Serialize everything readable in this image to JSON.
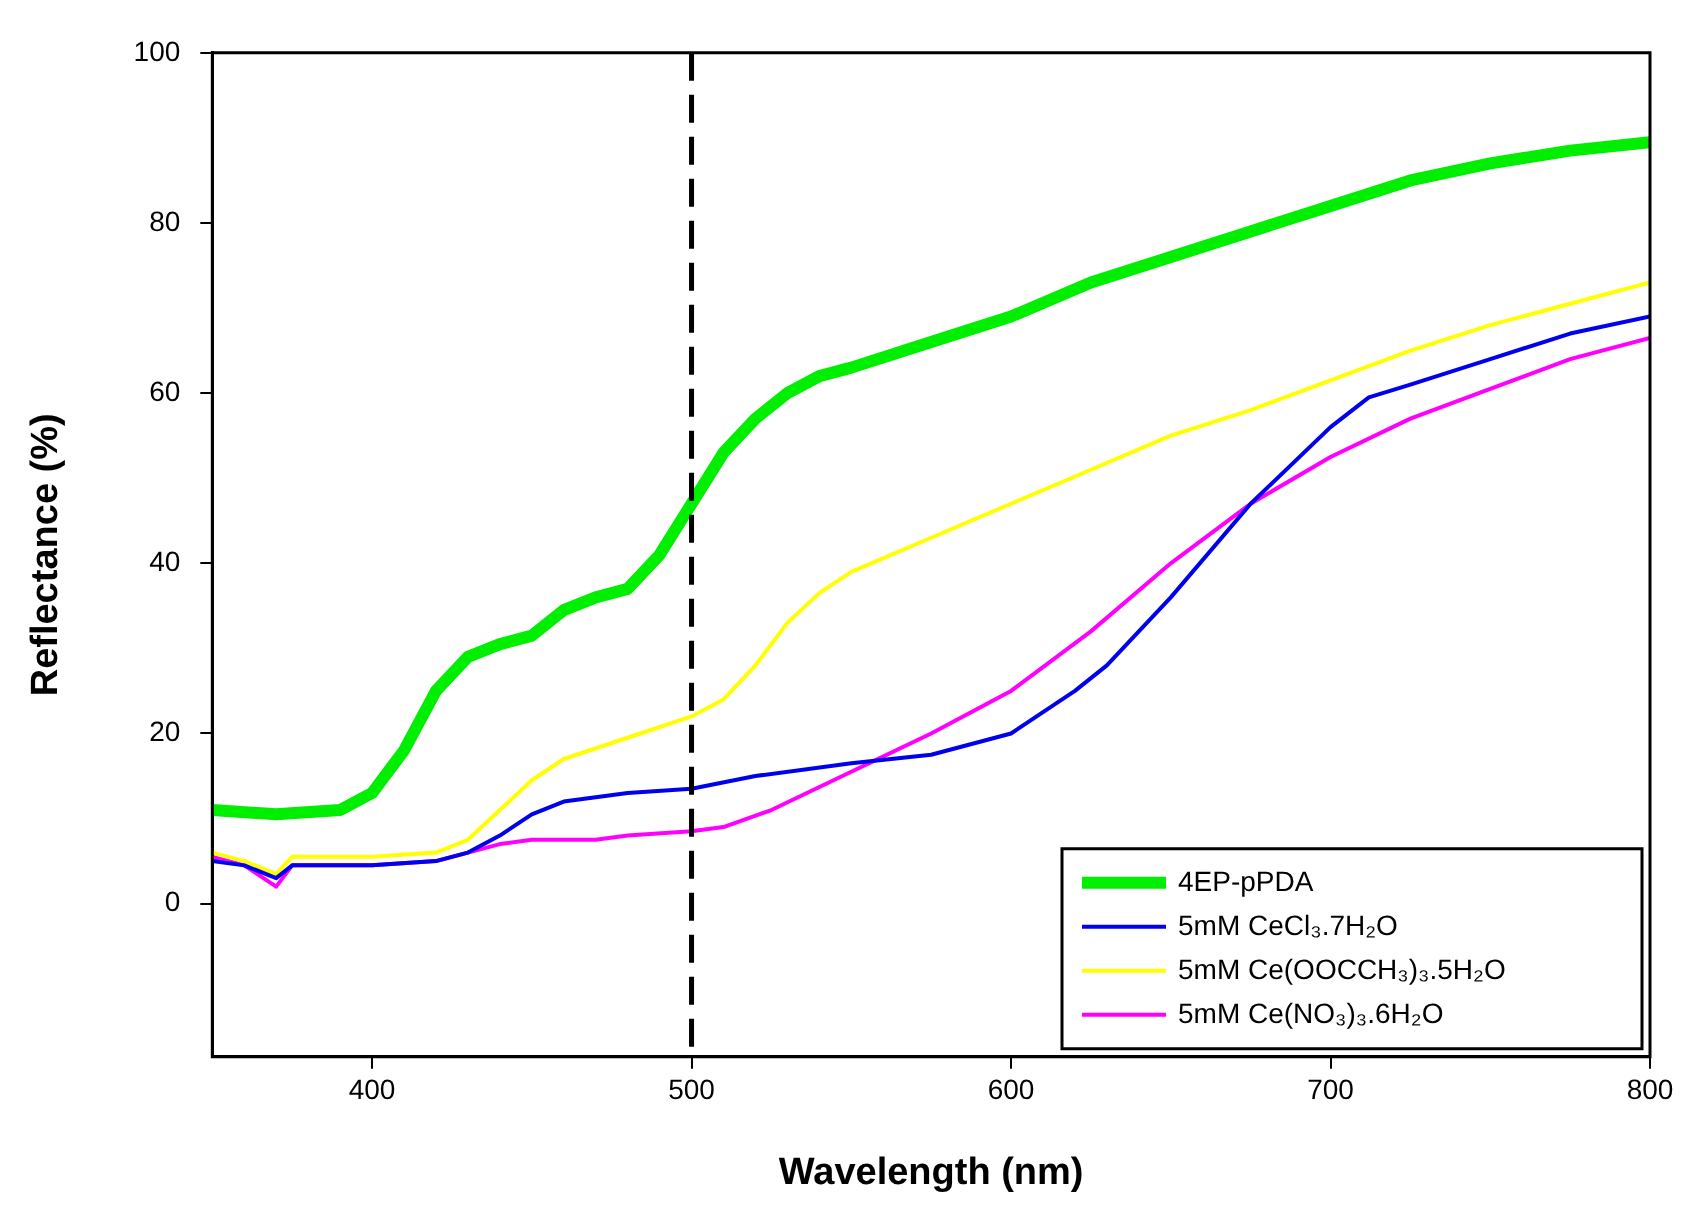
{
  "chart_data": {
    "type": "line",
    "xlabel": "Wavelength (nm)",
    "ylabel": "Reflectance (%)",
    "xlim": [
      350,
      800
    ],
    "xticks": [
      400,
      500,
      600,
      700,
      800
    ],
    "ylim": [
      -18,
      100
    ],
    "yticks": [
      0,
      20,
      40,
      60,
      80,
      100
    ],
    "grid": false,
    "legend": "bottom right",
    "marker": "none",
    "line_style": "solid",
    "ref_lines": [
      {
        "axis": "x",
        "value": 500,
        "color": "#000000",
        "line_style": "dashed"
      }
    ],
    "series": [
      {
        "name": "4EP-pPDA",
        "color": "#00ee00",
        "x": [
          350,
          370,
          390,
          400,
          410,
          420,
          430,
          440,
          450,
          460,
          470,
          480,
          490,
          500,
          510,
          520,
          530,
          540,
          550,
          575,
          600,
          625,
          650,
          675,
          700,
          725,
          750,
          775,
          800
        ],
        "values": [
          11,
          10.5,
          11,
          13,
          18,
          25,
          29,
          30.5,
          31.5,
          34.5,
          36,
          37,
          41,
          47,
          53,
          57,
          60,
          62,
          63,
          66,
          69,
          73,
          76,
          79,
          82,
          85,
          87,
          88.5,
          89.5
        ]
      },
      {
        "name": "5mM CeCl₃.7H₂O",
        "color": "#0000ee",
        "x": [
          350,
          360,
          370,
          375,
          400,
          420,
          430,
          440,
          450,
          460,
          480,
          500,
          520,
          550,
          575,
          600,
          620,
          630,
          650,
          675,
          700,
          712,
          725,
          750,
          775,
          800
        ],
        "values": [
          5,
          4.5,
          3,
          4.5,
          4.5,
          5,
          6,
          8,
          10.5,
          12,
          13,
          13.5,
          15,
          16.5,
          17.5,
          20,
          25,
          28,
          36,
          47,
          56,
          59.5,
          61,
          64,
          67,
          69
        ]
      },
      {
        "name": "5mM Ce(OOCCH₃)₃.5H₂O",
        "color": "#ffff00",
        "x": [
          350,
          360,
          370,
          375,
          400,
          420,
          430,
          440,
          450,
          460,
          480,
          500,
          510,
          520,
          530,
          540,
          550,
          575,
          600,
          625,
          650,
          675,
          700,
          725,
          750,
          775,
          800
        ],
        "values": [
          6,
          5,
          3.5,
          5.5,
          5.5,
          6,
          7.5,
          11,
          14.5,
          17,
          19.5,
          22,
          24,
          28,
          33,
          36.5,
          39,
          43,
          47,
          51,
          55,
          58,
          61.5,
          65,
          68,
          70.5,
          73
        ]
      },
      {
        "name": "5mM Ce(NO₃)₃.6H₂O",
        "color": "#ff00ff",
        "x": [
          350,
          360,
          370,
          375,
          400,
          420,
          440,
          450,
          470,
          480,
          500,
          510,
          525,
          550,
          575,
          600,
          625,
          650,
          675,
          700,
          725,
          750,
          775,
          800
        ],
        "values": [
          5.5,
          4.5,
          2,
          4.5,
          4.5,
          5,
          7,
          7.5,
          7.5,
          8,
          8.5,
          9,
          11,
          15.5,
          20,
          25,
          32,
          40,
          47,
          52.5,
          57,
          60.5,
          64,
          66.5
        ]
      }
    ]
  }
}
